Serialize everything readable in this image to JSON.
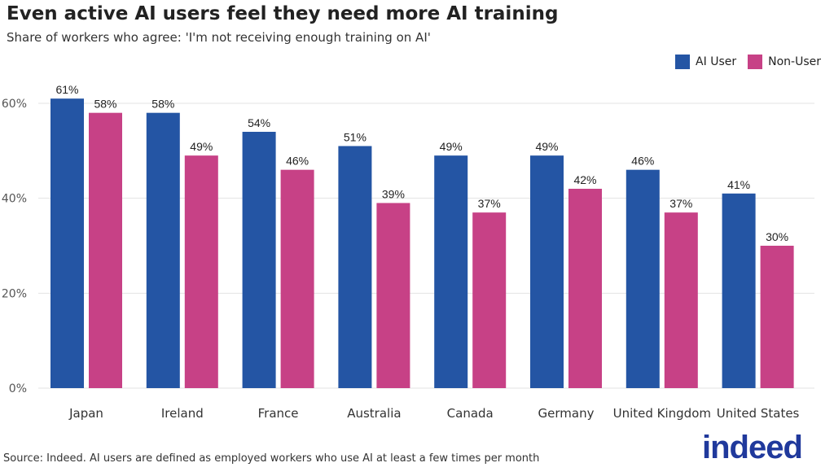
{
  "chart_data": {
    "type": "bar",
    "title": "Even active AI users feel they need more AI training",
    "subtitle": "Share of workers who agree: 'I'm not receiving enough training on AI'",
    "categories": [
      "Japan",
      "Ireland",
      "France",
      "Australia",
      "Canada",
      "Germany",
      "United Kingdom",
      "United States"
    ],
    "series": [
      {
        "name": "AI User",
        "color": "#2455a4",
        "values": [
          61,
          58,
          54,
          51,
          49,
          49,
          46,
          41
        ]
      },
      {
        "name": "Non-User",
        "color": "#c74186",
        "values": [
          58,
          49,
          46,
          39,
          37,
          42,
          37,
          30
        ]
      }
    ],
    "ylim": [
      0,
      63
    ],
    "yticks": [
      0,
      20,
      40,
      60
    ],
    "ytick_labels": [
      "0%",
      "20%",
      "40%",
      "60%"
    ],
    "value_suffix": "%",
    "grid": "horizontal",
    "legend": "top-right",
    "xlabel": "",
    "ylabel": ""
  },
  "source": "Source: Indeed. AI users are defined as employed workers who use AI at least a few times per month",
  "logo": "indeed"
}
